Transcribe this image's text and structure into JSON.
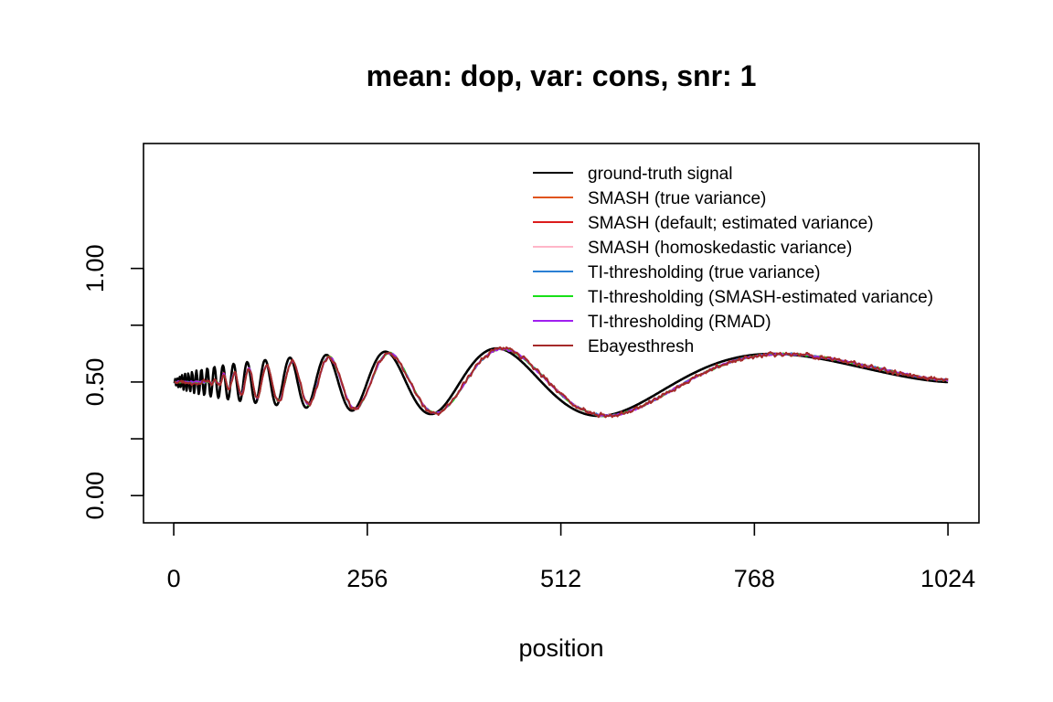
{
  "chart_data": {
    "type": "line",
    "title": "mean: dop, var: cons, snr: 1",
    "xlabel": "position",
    "ylabel": "",
    "xlim": [
      -40,
      1065
    ],
    "ylim": [
      -0.12,
      1.55
    ],
    "x_ticks": [
      0,
      256,
      512,
      768,
      1024
    ],
    "x_tick_labels": [
      "0",
      "256",
      "512",
      "768",
      "1024"
    ],
    "y_ticks": [
      0.0,
      0.25,
      0.5,
      0.75,
      1.0
    ],
    "y_tick_labels": [
      "0.00",
      "",
      "0.50",
      "",
      "1.00"
    ],
    "grid": false,
    "legend_position": "top-right",
    "series": [
      {
        "name": "ground-truth signal",
        "color": "#000000"
      },
      {
        "name": "SMASH (true variance)",
        "color": "#e0541c"
      },
      {
        "name": "SMASH (default; estimated variance)",
        "color": "#dc1c1c"
      },
      {
        "name": "SMASH (homoskedastic variance)",
        "color": "#ffb6c8"
      },
      {
        "name": "TI-thresholding (true variance)",
        "color": "#2a7fd4"
      },
      {
        "name": "TI-thresholding (SMASH-estimated variance)",
        "color": "#18e018"
      },
      {
        "name": "TI-thresholding (RMAD)",
        "color": "#a020f0"
      },
      {
        "name": "Ebayesthresh",
        "color": "#a52a2a"
      }
    ],
    "signal": {
      "function": "doppler",
      "n": 1024,
      "center": 0.5,
      "amplitude": 0.3,
      "epsilon": 0.05
    }
  }
}
